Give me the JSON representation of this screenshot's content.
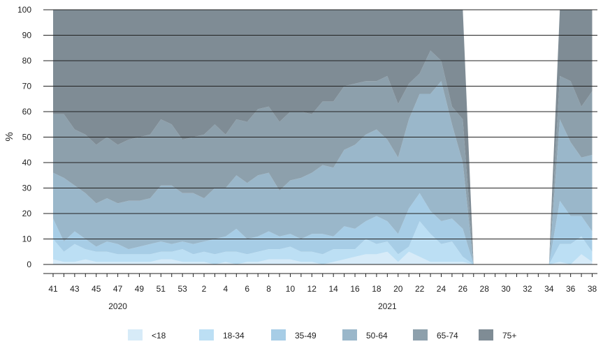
{
  "chart_data": {
    "type": "area",
    "stacked": true,
    "xlabel": "",
    "ylabel": "%",
    "ylim": [
      0,
      100
    ],
    "yticks": [
      0,
      10,
      20,
      30,
      40,
      50,
      60,
      70,
      80,
      90,
      100
    ],
    "grid": true,
    "legend_position": "bottom",
    "x_tick_labels": [
      "41",
      "43",
      "45",
      "47",
      "49",
      "51",
      "53",
      "2",
      "4",
      "6",
      "8",
      "10",
      "12",
      "14",
      "16",
      "18",
      "20",
      "22",
      "24",
      "26",
      "28",
      "30",
      "32",
      "34",
      "36",
      "38"
    ],
    "x_groups": [
      {
        "label": "2020",
        "center_week": "47"
      },
      {
        "label": "2021",
        "center_week": "19"
      }
    ],
    "x_weeks": [
      "41",
      "42",
      "43",
      "44",
      "45",
      "46",
      "47",
      "48",
      "49",
      "50",
      "51",
      "52",
      "53",
      "1",
      "2",
      "3",
      "4",
      "5",
      "6",
      "7",
      "8",
      "9",
      "10",
      "11",
      "12",
      "13",
      "14",
      "15",
      "16",
      "17",
      "18",
      "19",
      "20",
      "21",
      "22",
      "23",
      "24",
      "25",
      "26",
      "27",
      "28",
      "29",
      "30",
      "31",
      "32",
      "33",
      "34",
      "35",
      "36",
      "37",
      "38"
    ],
    "boundaries": [
      [
        2,
        1,
        1,
        2,
        1,
        1,
        1,
        1,
        1,
        1,
        2,
        2,
        1,
        1,
        1,
        0,
        1,
        0,
        1,
        1,
        2,
        2,
        2,
        1,
        1,
        0,
        1,
        2,
        3,
        4,
        4,
        5,
        1,
        5,
        3,
        1,
        1,
        1,
        1,
        0,
        0,
        0,
        0,
        0,
        0,
        0,
        0,
        1,
        0,
        4,
        1
      ],
      [
        10,
        5,
        8,
        6,
        5,
        5,
        4,
        4,
        4,
        4,
        5,
        5,
        6,
        4,
        5,
        4,
        5,
        5,
        4,
        5,
        6,
        6,
        7,
        5,
        5,
        4,
        6,
        6,
        6,
        10,
        8,
        9,
        4,
        7,
        17,
        12,
        8,
        9,
        3,
        0,
        0,
        0,
        0,
        0,
        0,
        0,
        0,
        8,
        8,
        11,
        5
      ],
      [
        18,
        9,
        13,
        10,
        7,
        9,
        8,
        6,
        7,
        8,
        9,
        8,
        9,
        8,
        9,
        10,
        11,
        14,
        10,
        11,
        13,
        11,
        12,
        10,
        12,
        12,
        11,
        15,
        14,
        17,
        19,
        17,
        12,
        22,
        28,
        21,
        17,
        18,
        14,
        0,
        0,
        0,
        0,
        0,
        0,
        0,
        0,
        25,
        19,
        19,
        13
      ],
      [
        36,
        34,
        31,
        28,
        24,
        26,
        24,
        25,
        25,
        26,
        31,
        31,
        28,
        28,
        26,
        30,
        30,
        35,
        32,
        35,
        36,
        29,
        33,
        34,
        36,
        39,
        38,
        45,
        47,
        51,
        53,
        49,
        42,
        57,
        67,
        67,
        72,
        55,
        40,
        0,
        0,
        0,
        0,
        0,
        0,
        0,
        0,
        57,
        48,
        42,
        43
      ],
      [
        59,
        59,
        53,
        51,
        47,
        50,
        47,
        49,
        50,
        51,
        57,
        55,
        49,
        50,
        51,
        55,
        51,
        57,
        56,
        61,
        62,
        56,
        60,
        60,
        59,
        64,
        64,
        70,
        71,
        72,
        72,
        74,
        63,
        71,
        75,
        84,
        80,
        62,
        57,
        0,
        0,
        0,
        0,
        0,
        0,
        0,
        0,
        74,
        72,
        62,
        68
      ],
      [
        100,
        100,
        100,
        100,
        100,
        100,
        100,
        100,
        100,
        100,
        100,
        100,
        100,
        100,
        100,
        100,
        100,
        100,
        100,
        100,
        100,
        100,
        100,
        100,
        100,
        100,
        100,
        100,
        100,
        100,
        100,
        100,
        100,
        100,
        100,
        100,
        100,
        100,
        100,
        0,
        0,
        0,
        0,
        0,
        0,
        0,
        0,
        100,
        100,
        100,
        100
      ]
    ],
    "series": [
      {
        "name": "<18",
        "color": "#d7ebf8"
      },
      {
        "name": "18-34",
        "color": "#bcdff4"
      },
      {
        "name": "35-49",
        "color": "#a7cde6"
      },
      {
        "name": "50-64",
        "color": "#9ab7ca"
      },
      {
        "name": "65-74",
        "color": "#8da0ac"
      },
      {
        "name": "75+",
        "color": "#7f8c95"
      }
    ]
  }
}
